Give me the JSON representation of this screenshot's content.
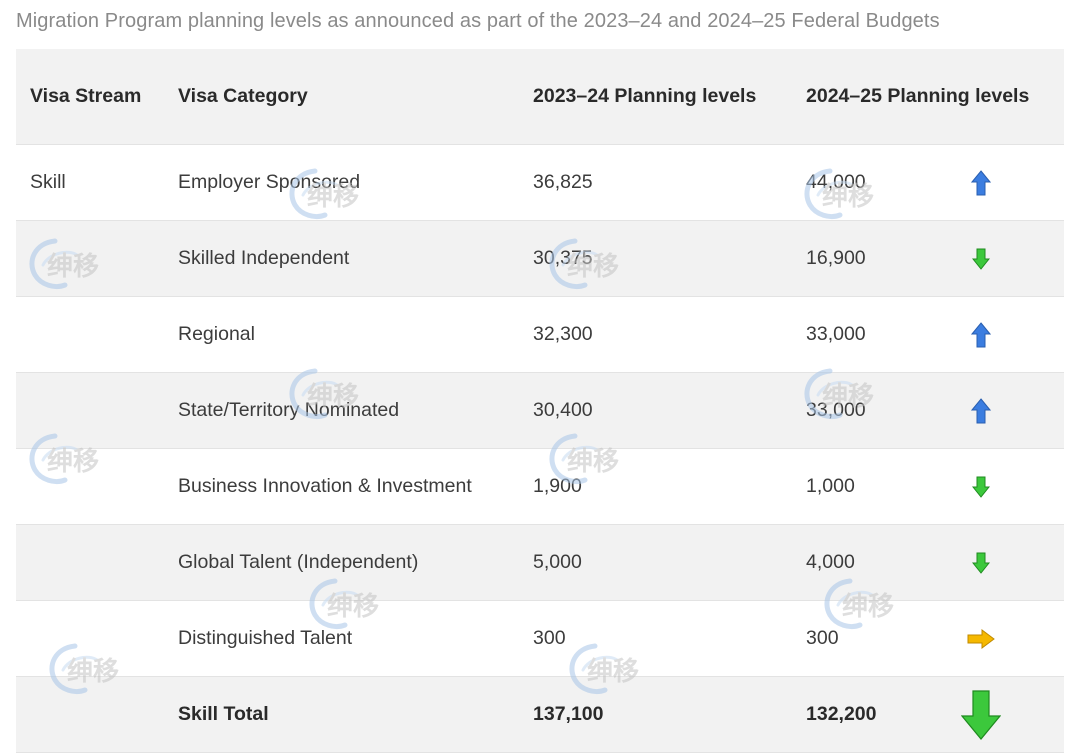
{
  "caption": "Migration Program planning levels as announced as part of the 2023–24 and 2024–25 Federal Budgets",
  "watermark_text": "绅移",
  "table": {
    "headers": {
      "stream": "Visa Stream",
      "category": "Visa Category",
      "col_2324": "2023–24 Planning levels",
      "col_2425": "2024–25 Planning levels"
    },
    "rows": [
      {
        "stream": "Skill",
        "category": "Employer Sponsored",
        "v2324": "36,825",
        "v2425": "44,000",
        "trend": "up"
      },
      {
        "stream": "",
        "category": "Skilled Independent",
        "v2324": "30,375",
        "v2425": "16,900",
        "trend": "down"
      },
      {
        "stream": "",
        "category": "Regional",
        "v2324": "32,300",
        "v2425": "33,000",
        "trend": "up"
      },
      {
        "stream": "",
        "category": "State/Territory Nominated",
        "v2324": "30,400",
        "v2425": "33,000",
        "trend": "up"
      },
      {
        "stream": "",
        "category": "Business Innovation & Investment",
        "v2324": "1,900",
        "v2425": "1,000",
        "trend": "down"
      },
      {
        "stream": "",
        "category": "Global Talent (Independent)",
        "v2324": "5,000",
        "v2425": "4,000",
        "trend": "down"
      },
      {
        "stream": "",
        "category": "Distinguished Talent",
        "v2324": "300",
        "v2425": "300",
        "trend": "same"
      }
    ],
    "total": {
      "stream": "",
      "category": "Skill Total",
      "v2324": "137,100",
      "v2425": "132,200",
      "trend": "down"
    }
  },
  "colors": {
    "up_arrow": "#3b7de0",
    "down_arrow": "#3cc83c",
    "same_arrow": "#f5b800",
    "header_bg": "#f2f2f2"
  },
  "icons": {
    "up": "arrow-up-icon",
    "down": "arrow-down-icon",
    "same": "arrow-right-icon"
  }
}
